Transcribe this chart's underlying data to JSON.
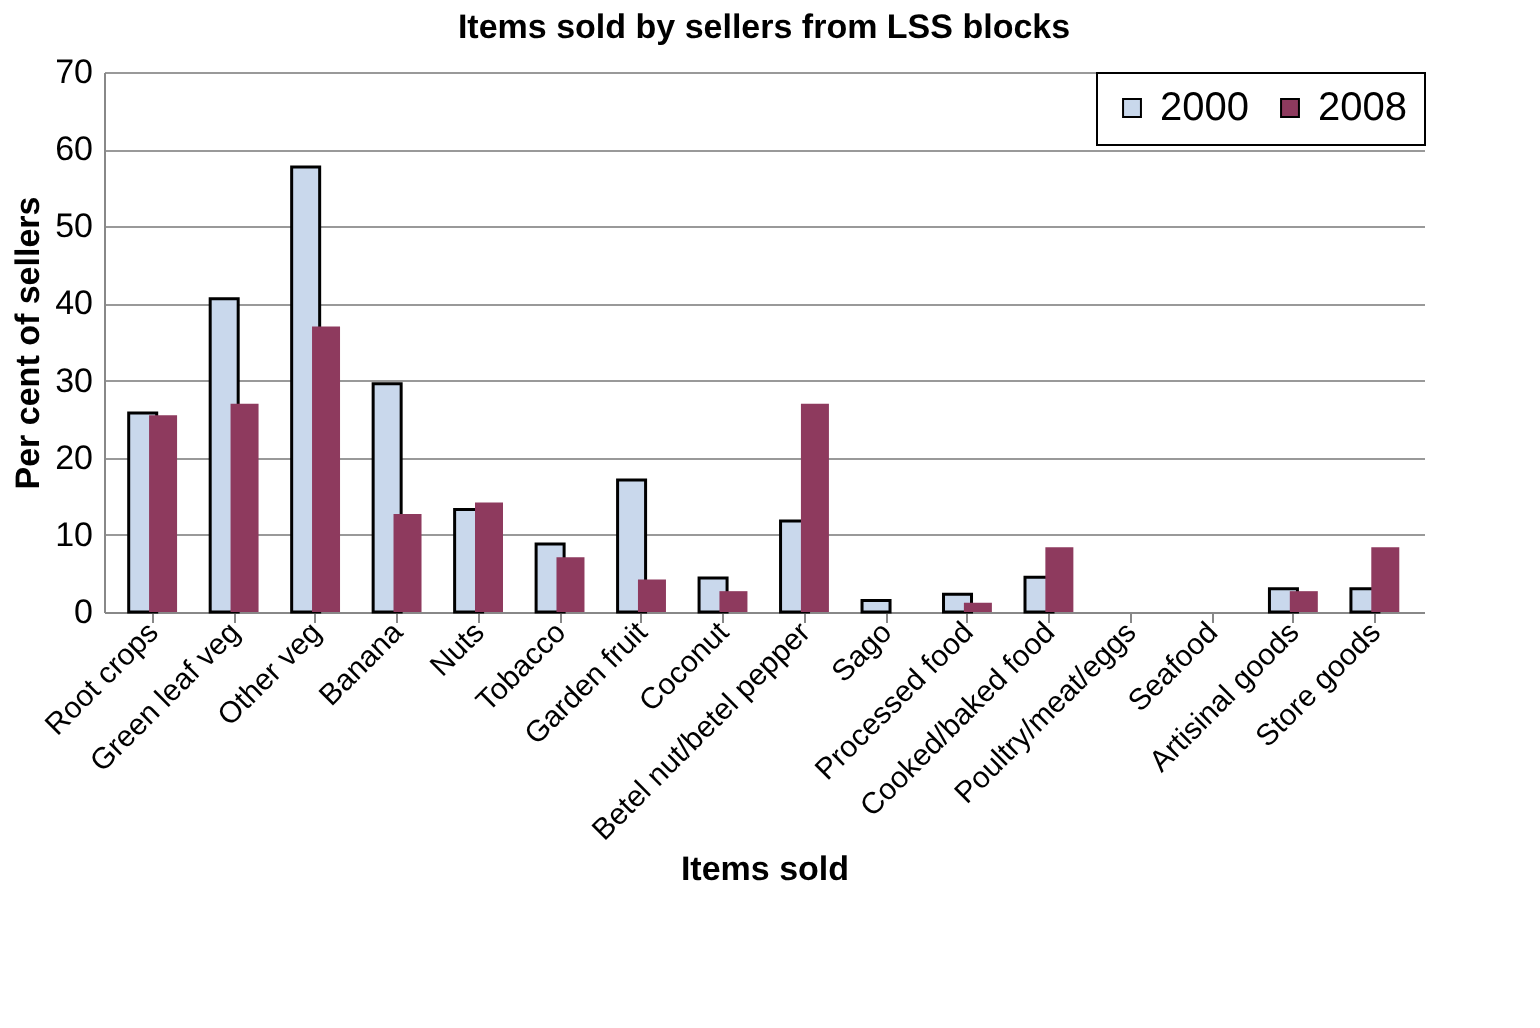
{
  "chart_data": {
    "type": "bar",
    "title": "Items sold by sellers from LSS blocks",
    "xlabel": "Items sold",
    "ylabel": "Per cent of sellers",
    "categories": [
      "Root crops",
      "Green leaf veg",
      "Other veg",
      "Banana",
      "Nuts",
      "Tobacco",
      "Garden fruit",
      "Coconut",
      "Betel nut/betel pepper",
      "Sago",
      "Processed food",
      "Cooked/baked food",
      "Poultry/meat/eggs",
      "Seafood",
      "Artisinal goods",
      "Store goods"
    ],
    "series": [
      {
        "name": "2000",
        "color": "#c9d8ec",
        "values": [
          25.8,
          40.6,
          57.7,
          29.6,
          13.3,
          8.8,
          17.1,
          4.4,
          11.8,
          1.5,
          2.3,
          4.5,
          null,
          null,
          3.0,
          3.0
        ]
      },
      {
        "name": "2008",
        "color": "#8e3a5e",
        "values": [
          25.5,
          27.0,
          37.0,
          12.7,
          14.2,
          7.1,
          4.2,
          2.7,
          27.0,
          null,
          1.2,
          8.4,
          null,
          null,
          2.7,
          8.4
        ]
      }
    ],
    "ylim": [
      0,
      70
    ],
    "yticks": [
      0,
      10,
      20,
      30,
      40,
      50,
      60,
      70
    ],
    "grid": "y",
    "legend": "top right"
  }
}
